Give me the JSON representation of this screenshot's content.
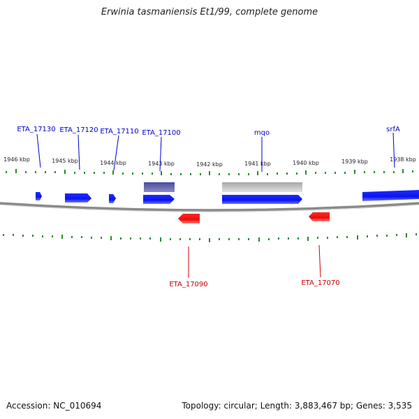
{
  "title": "Erwinia tasmaniensis Et1/99, complete genome",
  "footer": {
    "accession": "Accession: NC_010694",
    "summary": "Topology: circular; Length: 3,883,467 bp; Genes: 3,535"
  },
  "ruler": {
    "labels": [
      "1946 kbp",
      "1945 kbp",
      "1944 kbp",
      "1943 kbp",
      "1942 kbp",
      "1941 kbp",
      "1940 kbp",
      "1939 kbp",
      "1938 kbp"
    ]
  },
  "genes_forward": [
    "ETA_17130",
    "ETA_17120",
    "ETA_17110",
    "ETA_17100",
    "mqo",
    "srfA"
  ],
  "genes_reverse": [
    "ETA_17090",
    "ETA_17070"
  ],
  "colors": {
    "forward_cds": "#0a14ee",
    "reverse_cds": "#ee0a0a",
    "gene_forward": "#3c3c8c",
    "gene_grey": "#b4b4b4",
    "tick": "#2a8a2a",
    "backbone": "#8a8a8a"
  }
}
